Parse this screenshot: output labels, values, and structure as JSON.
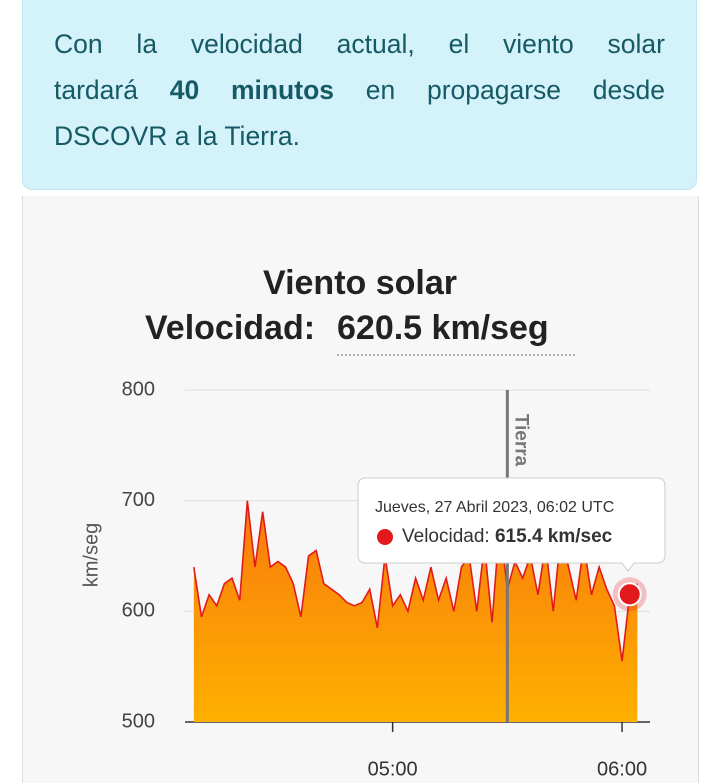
{
  "info": {
    "line1": "Con la velocidad actual, el viento solar",
    "line2_before": "tardará",
    "line2_bold": "40 minutos",
    "line2_after": "en propagarse desde",
    "line3": "DSCOVR a la Tierra."
  },
  "chart_data": {
    "type": "area",
    "title": "Viento solar",
    "subtitle_label": "Velocidad:",
    "subtitle_value": "620.5 km/seg",
    "y_label": "km/seg",
    "color": "#e31a1c",
    "fill_top": "#f77a0c",
    "fill_bottom": "#ffb000",
    "x": [
      "04:08",
      "04:10",
      "04:12",
      "04:14",
      "04:16",
      "04:18",
      "04:20",
      "04:22",
      "04:24",
      "04:26",
      "04:28",
      "04:30",
      "04:32",
      "04:34",
      "04:36",
      "04:38",
      "04:40",
      "04:42",
      "04:44",
      "04:46",
      "04:48",
      "04:50",
      "04:52",
      "04:54",
      "04:56",
      "04:58",
      "05:00",
      "05:02",
      "05:04",
      "05:06",
      "05:08",
      "05:10",
      "05:12",
      "05:14",
      "05:16",
      "05:18",
      "05:20",
      "05:22",
      "05:24",
      "05:26",
      "05:28",
      "05:30",
      "05:32",
      "05:34",
      "05:36",
      "05:38",
      "05:40",
      "05:42",
      "05:44",
      "05:46",
      "05:48",
      "05:50",
      "05:52",
      "05:54",
      "05:56",
      "05:58",
      "06:00",
      "06:02",
      "06:04"
    ],
    "values": [
      640,
      595,
      615,
      605,
      625,
      630,
      610,
      700,
      640,
      690,
      640,
      645,
      640,
      625,
      595,
      650,
      655,
      625,
      620,
      615,
      608,
      605,
      608,
      620,
      585,
      650,
      605,
      615,
      600,
      630,
      610,
      640,
      610,
      630,
      600,
      640,
      650,
      600,
      660,
      590,
      680,
      620,
      645,
      630,
      650,
      615,
      660,
      600,
      670,
      640,
      610,
      660,
      615,
      640,
      620,
      605,
      555,
      615.4,
      625
    ],
    "xlim": [
      "04:07",
      "06:06"
    ],
    "xticks": [
      "05:00",
      "06:00"
    ],
    "ylim": [
      500,
      800
    ],
    "yticks": [
      500,
      600,
      700,
      800
    ],
    "grid": true,
    "marker_line": {
      "label": "Tierra",
      "x": "05:30"
    },
    "tooltip": {
      "title": "Jueves, 27 Abril 2023, 06:02 UTC",
      "label": "Velocidad:",
      "value_label": "615.4 km/sec",
      "x": "06:02"
    }
  }
}
